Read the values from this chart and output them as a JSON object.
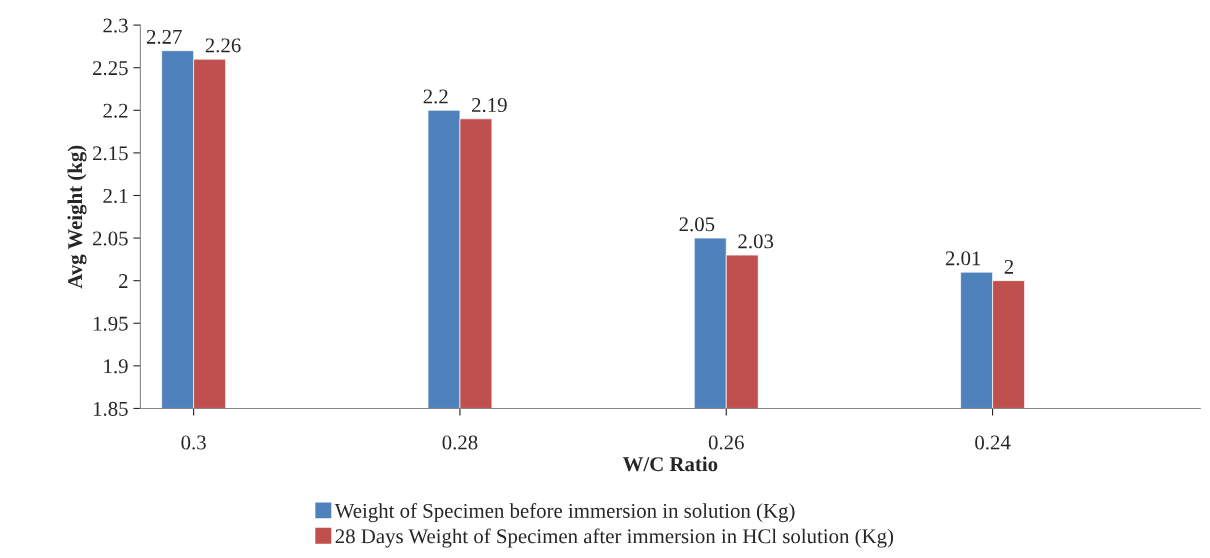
{
  "chart_data": {
    "type": "bar",
    "xlabel": "W/C Ratio",
    "ylabel": "Avg Weight (kg)",
    "categories": [
      "0.3",
      "0.28",
      "0.26",
      "0.24"
    ],
    "series": [
      {
        "name": "Weight of Specimen before immersion in solution (Kg)",
        "color": "#4f81bd",
        "values": [
          2.27,
          2.2,
          2.05,
          2.01
        ]
      },
      {
        "name": "28 Days Weight of Specimen after immersion in HCl solution (Kg)",
        "color": "#c0504d",
        "values": [
          2.26,
          2.19,
          2.03,
          2
        ]
      }
    ],
    "ylim": [
      1.85,
      2.3
    ],
    "yticks": [
      1.85,
      1.9,
      1.95,
      2,
      2.05,
      2.1,
      2.15,
      2.2,
      2.25,
      2.3
    ],
    "data_labels": true,
    "grid": false,
    "legend": "bottom"
  }
}
